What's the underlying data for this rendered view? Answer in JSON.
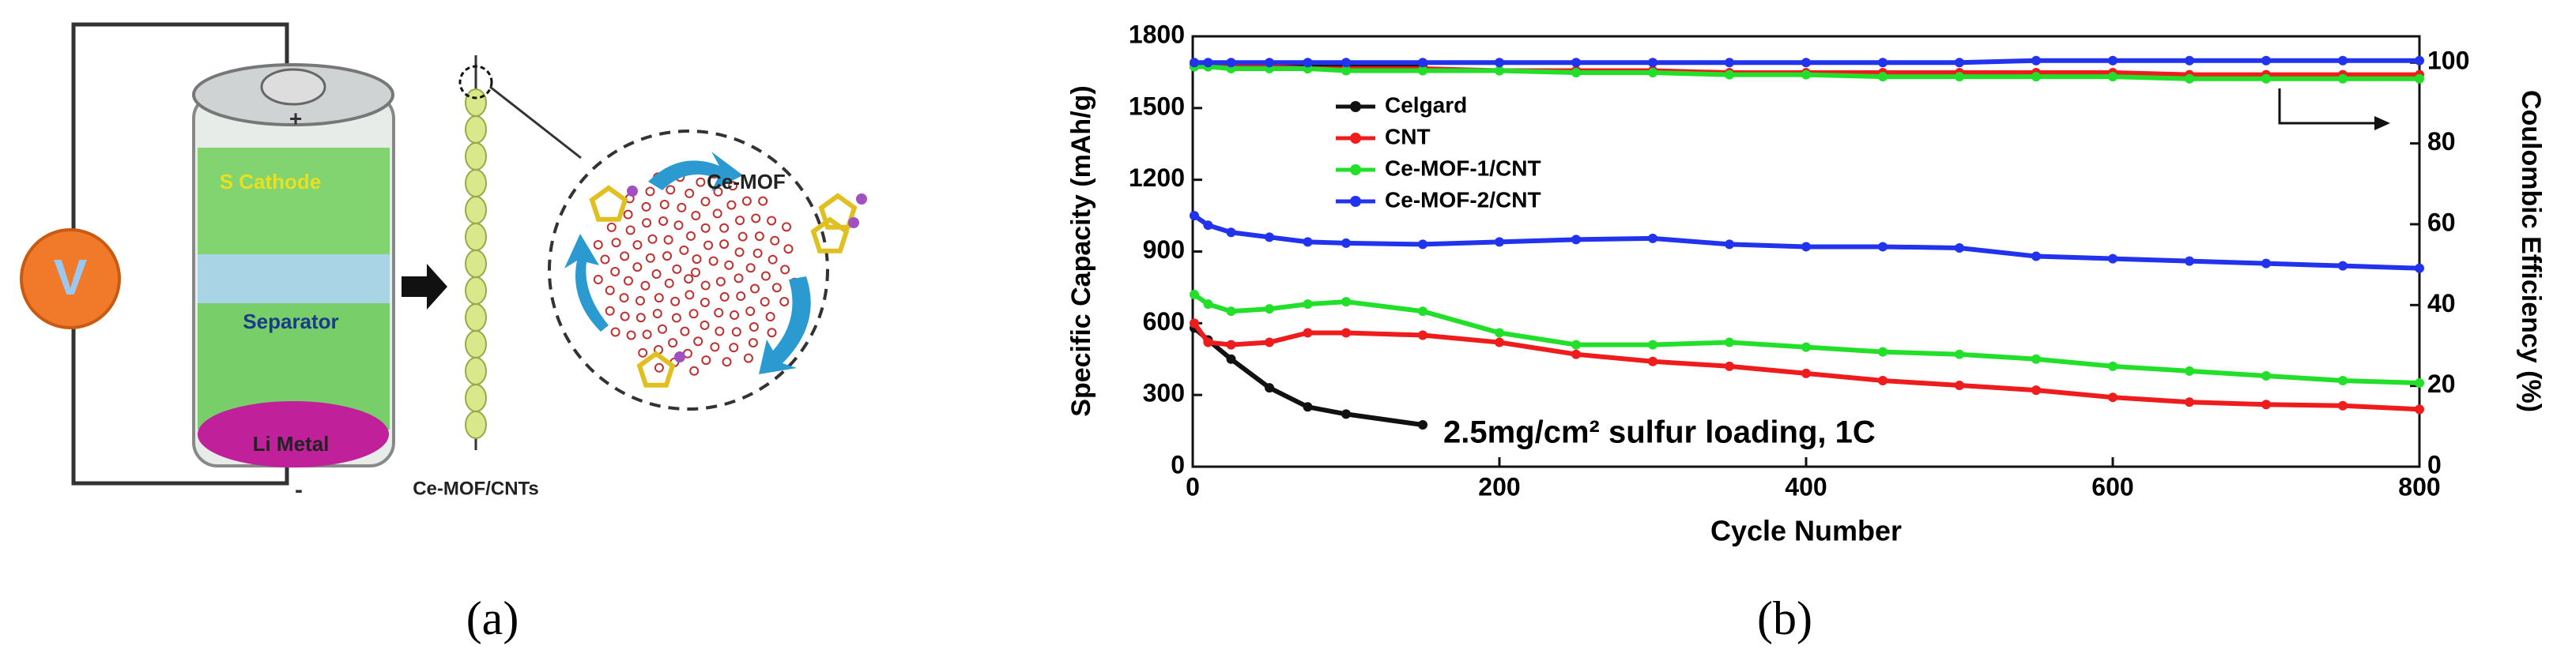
{
  "figure": {
    "panel_a": {
      "voltmeter": "V",
      "plus": "+",
      "minus": "-",
      "cathode": "S Cathode",
      "separator": "Separator",
      "anode": "Li Metal",
      "chain": "Ce-MOF/CNTs",
      "mof": "Ce-MOF"
    },
    "captions": [
      "(a)",
      "(b)"
    ]
  },
  "chart_data": {
    "type": "line",
    "xlabel": "Cycle Number",
    "ylabel": "Specific Capacity (mAh/g)",
    "y2label": "Coulombic Efficiency (%)",
    "annotation": "2.5mg/cm² sulfur loading, 1C",
    "x": [
      1,
      10,
      25,
      50,
      75,
      100,
      150,
      200,
      250,
      300,
      350,
      400,
      450,
      500,
      550,
      600,
      650,
      700,
      750,
      800
    ],
    "xlim": [
      0,
      800
    ],
    "xticks": [
      0,
      200,
      400,
      600,
      800
    ],
    "ylim": [
      0,
      1800
    ],
    "yticks": [
      0,
      300,
      600,
      900,
      1200,
      1500,
      1800
    ],
    "y2lim": [
      0,
      106.5
    ],
    "y2ticks": [
      0,
      20,
      40,
      60,
      80,
      100
    ],
    "legend": "upper left",
    "series": [
      {
        "name": "Celgard",
        "color": "#111111",
        "values": [
          580,
          530,
          450,
          330,
          250,
          220,
          175,
          null,
          null,
          null,
          null,
          null,
          null,
          null,
          null,
          null,
          null,
          null,
          null,
          null
        ]
      },
      {
        "name": "CNT",
        "color": "#ee1c1c",
        "values": [
          600,
          520,
          510,
          520,
          560,
          560,
          550,
          520,
          470,
          440,
          420,
          390,
          360,
          340,
          320,
          290,
          270,
          260,
          255,
          240
        ]
      },
      {
        "name": "Ce-MOF-1/CNT",
        "color": "#22e02a",
        "values": [
          720,
          680,
          650,
          660,
          680,
          690,
          650,
          560,
          510,
          510,
          520,
          500,
          480,
          470,
          450,
          420,
          400,
          380,
          360,
          350
        ]
      },
      {
        "name": "Ce-MOF-2/CNT",
        "color": "#2233ee",
        "values": [
          1050,
          1010,
          980,
          960,
          940,
          935,
          930,
          940,
          950,
          955,
          930,
          920,
          920,
          915,
          880,
          870,
          860,
          850,
          840,
          830
        ]
      },
      {
        "color": "#111111",
        "axis": "y2",
        "values": [
          99,
          99,
          99,
          99,
          99,
          99,
          99,
          null,
          null,
          null,
          null,
          null,
          null,
          null,
          null,
          null,
          null,
          null,
          null,
          null
        ]
      },
      {
        "color": "#ee1c1c",
        "axis": "y2",
        "values": [
          99.5,
          99.5,
          99,
          99,
          98.5,
          98.5,
          98.5,
          98,
          98,
          98,
          97.5,
          97.5,
          97.5,
          97.5,
          97.5,
          97.5,
          97,
          97,
          97,
          97
        ]
      },
      {
        "color": "#22e02a",
        "axis": "y2",
        "values": [
          99,
          99,
          98.5,
          98.5,
          98.5,
          98,
          98,
          98,
          97.5,
          97.5,
          97,
          97,
          96.5,
          96.5,
          96.5,
          96.5,
          96,
          96,
          96,
          96
        ]
      },
      {
        "color": "#2233ee",
        "axis": "y2",
        "values": [
          100,
          100,
          100,
          100,
          100,
          100,
          100,
          100,
          100,
          100,
          100,
          100,
          100,
          100,
          100.5,
          100.5,
          100.5,
          100.5,
          100.5,
          100.5
        ]
      }
    ]
  }
}
